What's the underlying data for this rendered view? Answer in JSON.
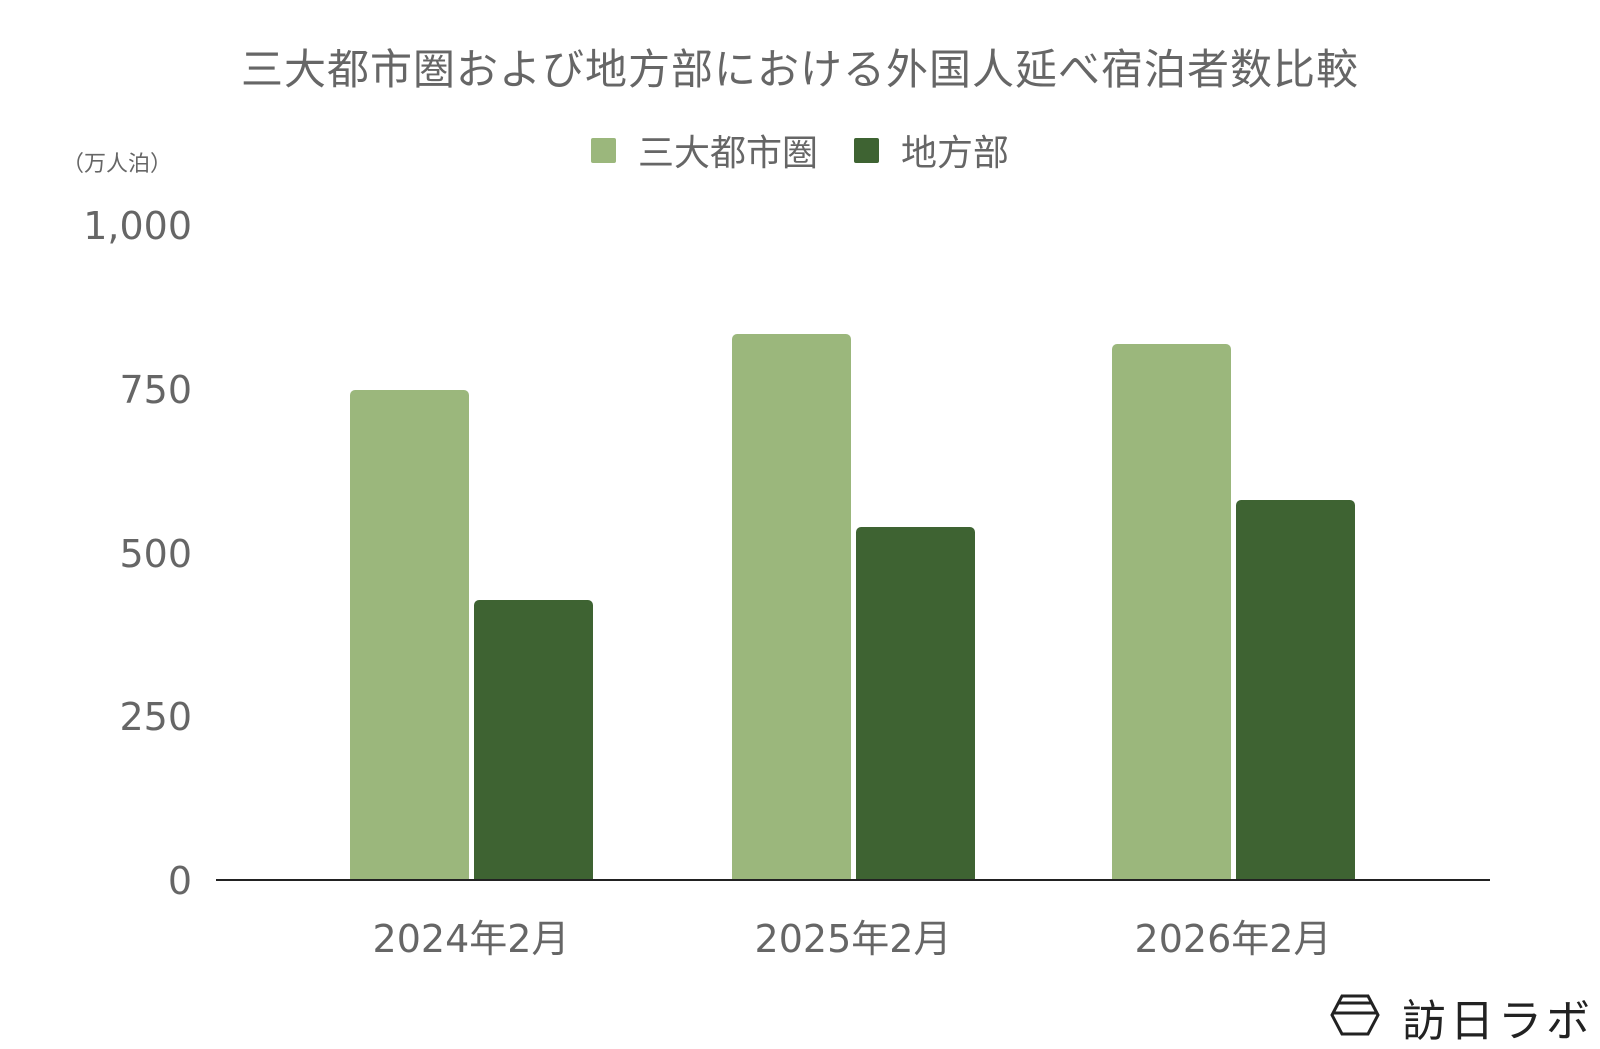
{
  "chart_data": {
    "type": "bar",
    "title": "三大都市圏および地方部における外国人延べ宿泊者数比較",
    "xlabel": "",
    "ylabel": "（万人泊）",
    "categories": [
      "2024年2月",
      "2025年2月",
      "2026年2月"
    ],
    "series": [
      {
        "name": "三大都市圏",
        "color": "#9BB77C",
        "values": [
          750,
          835,
          820
        ]
      },
      {
        "name": "地方部",
        "color": "#3E6332",
        "values": [
          428,
          540,
          581
        ]
      }
    ],
    "ylim": [
      0,
      1000
    ],
    "yticks": [
      0,
      250,
      500,
      750,
      1000
    ],
    "ytick_labels": [
      "0",
      "250",
      "500",
      "750",
      "1,000"
    ],
    "grid": false,
    "legend_position": "top"
  },
  "header": {
    "title": "三大都市圏および地方部における外国人延べ宿泊者数比較"
  },
  "legend": {
    "items": [
      {
        "label": "三大都市圏",
        "color": "#9BB77C"
      },
      {
        "label": "地方部",
        "color": "#3E6332"
      }
    ]
  },
  "axis": {
    "unit_label": "（万人泊）",
    "y_ticks": [
      "1,000",
      "750",
      "500",
      "250",
      "0"
    ],
    "x_ticks": [
      "2024年2月",
      "2025年2月",
      "2026年2月"
    ]
  },
  "logo": {
    "icon": "hexagon-logo-icon",
    "text": "訪日ラボ"
  }
}
